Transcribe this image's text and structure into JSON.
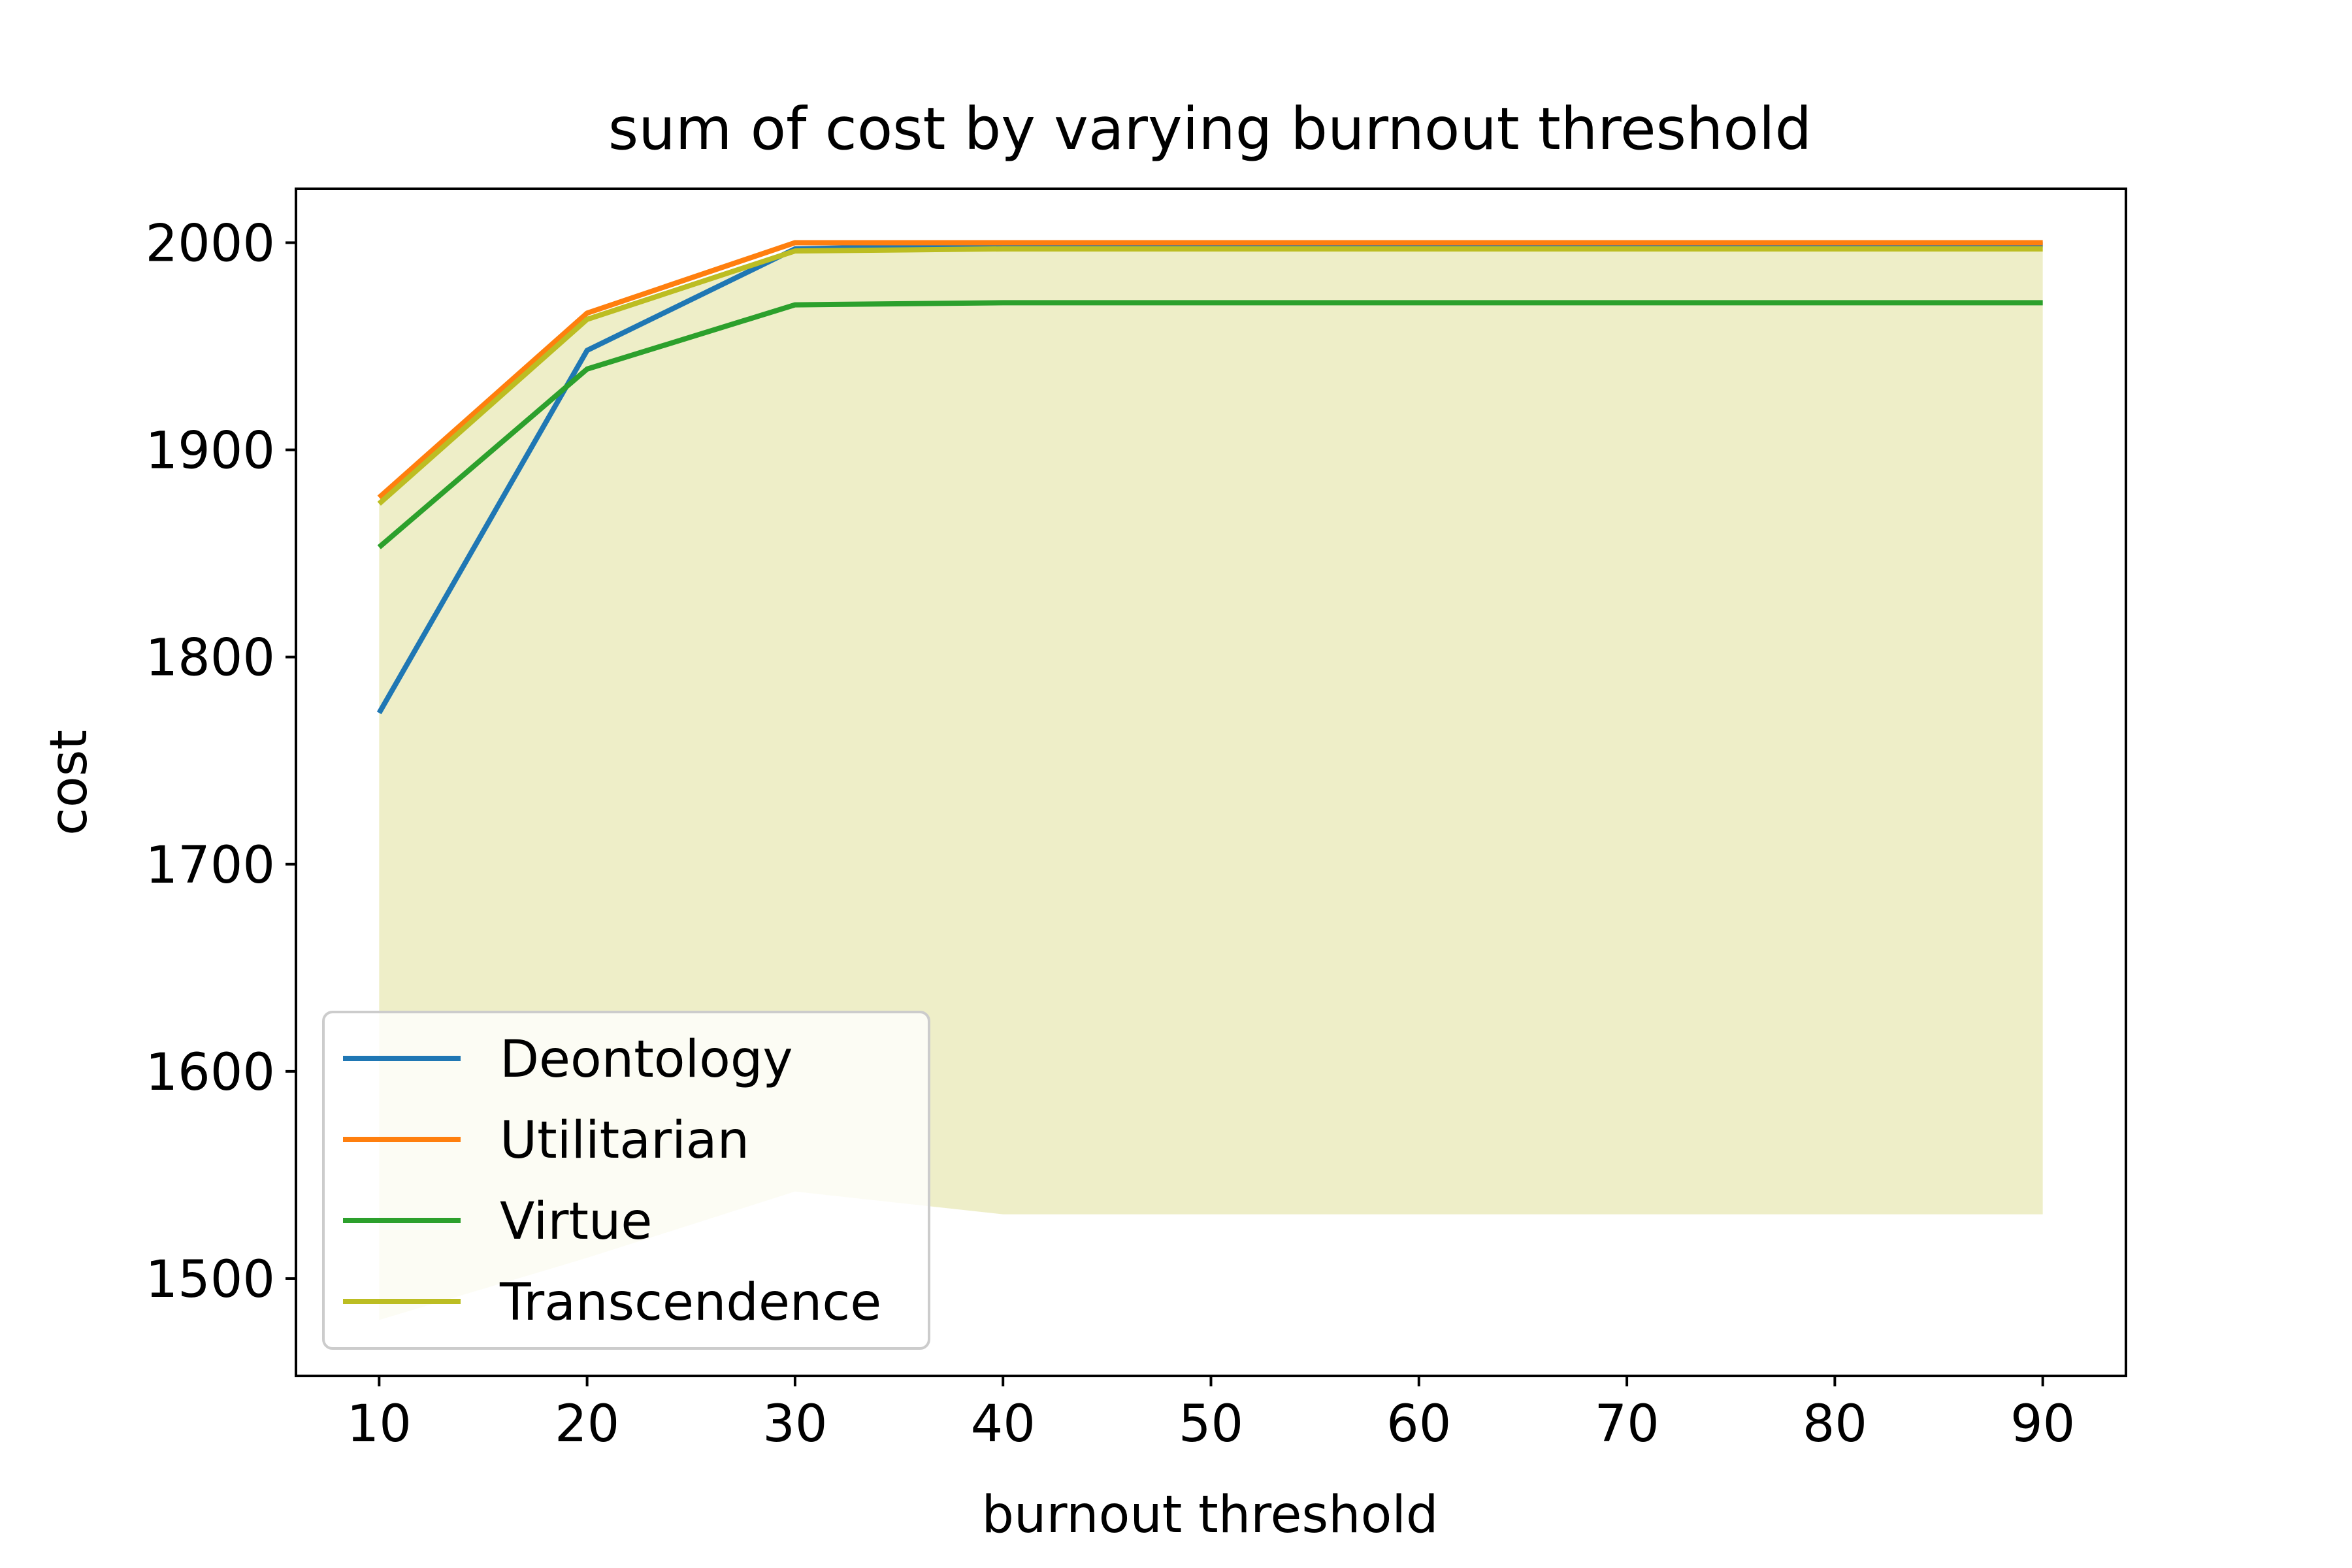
{
  "chart_data": {
    "type": "line",
    "title": "sum of cost by varying burnout threshold",
    "xlabel": "burnout threshold",
    "ylabel": "cost",
    "xlim": [
      6,
      94
    ],
    "ylim": [
      1453,
      2026
    ],
    "xticks": [
      10,
      20,
      30,
      40,
      50,
      60,
      70,
      80,
      90
    ],
    "yticks": [
      1500,
      1600,
      1700,
      1800,
      1900,
      2000
    ],
    "grid": false,
    "legend_position": "lower-left",
    "x": [
      10,
      20,
      30,
      40,
      50,
      60,
      70,
      80,
      90
    ],
    "series": [
      {
        "name": "Deontology",
        "color": "#1f77b4",
        "values": [
          1773,
          1948,
          1997,
          1999,
          1999,
          1999,
          1999,
          1999,
          1999
        ]
      },
      {
        "name": "Utilitarian",
        "color": "#ff7f0e",
        "values": [
          1877,
          1966,
          2000,
          2000,
          2000,
          2000,
          2000,
          2000,
          2000
        ]
      },
      {
        "name": "Virtue",
        "color": "#2ca02c",
        "values": [
          1853,
          1939,
          1970,
          1971,
          1971,
          1971,
          1971,
          1971,
          1971
        ]
      },
      {
        "name": "Transcendence",
        "color": "#bcbd22",
        "values": [
          1874,
          1963,
          1996,
          1997,
          1997,
          1997,
          1997,
          1997,
          1997
        ]
      }
    ],
    "band": {
      "color": "#bcbd22",
      "opacity": 0.25,
      "upper": [
        1874,
        1963,
        1996,
        1997,
        1997,
        1997,
        1997,
        1997,
        1997
      ],
      "lower": [
        1480,
        1510,
        1542,
        1531,
        1531,
        1531,
        1531,
        1531,
        1531
      ]
    }
  }
}
